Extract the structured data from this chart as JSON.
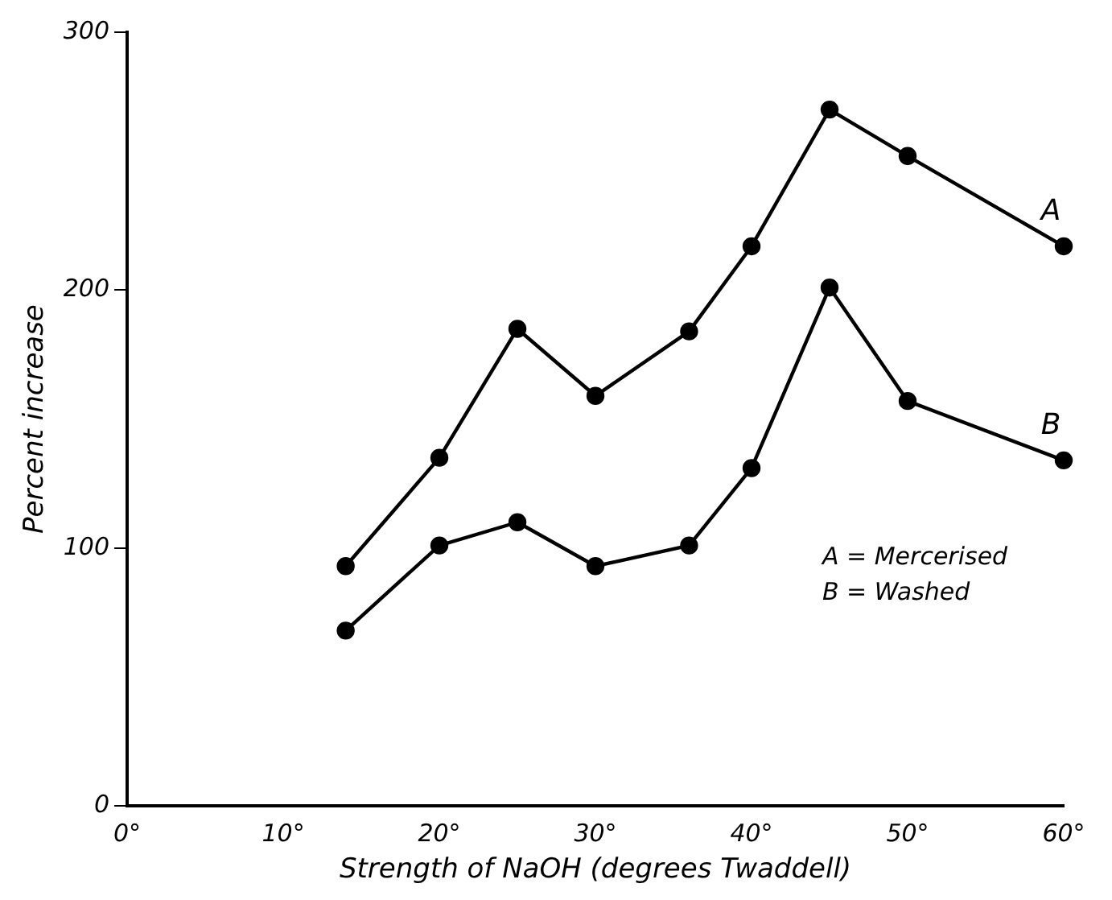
{
  "chart_data": {
    "type": "line",
    "xlabel": "Strength of NaOH (degrees Twaddell)",
    "ylabel": "Percent increase",
    "x": [
      14,
      20,
      25,
      30,
      36,
      40,
      45,
      50,
      60
    ],
    "series": [
      {
        "name": "A",
        "color": "#000000",
        "values": [
          93,
          135,
          185,
          159,
          184,
          217,
          270,
          252,
          217
        ]
      },
      {
        "name": "B",
        "color": "#000000",
        "values": [
          68,
          101,
          110,
          93,
          101,
          131,
          201,
          157,
          134
        ]
      }
    ],
    "xlim": [
      0,
      60
    ],
    "xticks": [
      {
        "value": 0,
        "label": "0°"
      },
      {
        "value": 10,
        "label": "10°"
      },
      {
        "value": 20,
        "label": "20°"
      },
      {
        "value": 30,
        "label": "30°"
      },
      {
        "value": 40,
        "label": "40°"
      },
      {
        "value": 50,
        "label": "50°"
      },
      {
        "value": 60,
        "label": "60°"
      }
    ],
    "ylim": [
      0,
      300
    ],
    "yticks": [
      0,
      100,
      200,
      300
    ],
    "grid": false,
    "legend": false,
    "marker": "circle",
    "line_style": "solid",
    "annotations": [
      "A = Mercerised",
      "B = Washed"
    ]
  }
}
